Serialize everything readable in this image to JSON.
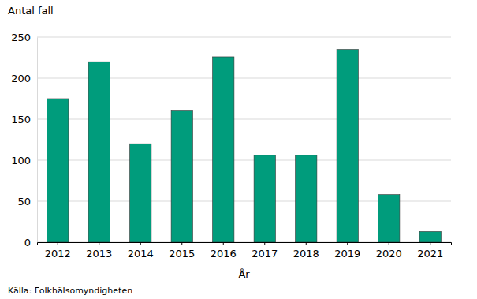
{
  "chart_data": {
    "type": "bar",
    "y_label": "Antal fall",
    "x_label": "År",
    "source": "Källa: Folkhälsomyndigheten",
    "categories": [
      "2012",
      "2013",
      "2014",
      "2015",
      "2016",
      "2017",
      "2018",
      "2019",
      "2020",
      "2021"
    ],
    "values": [
      175,
      220,
      120,
      160,
      226,
      106,
      106,
      235,
      58,
      13
    ],
    "color": "#009c7c",
    "ylim": [
      0,
      250
    ],
    "yticks": [
      0,
      50,
      100,
      150,
      200,
      250
    ],
    "grid": true
  }
}
